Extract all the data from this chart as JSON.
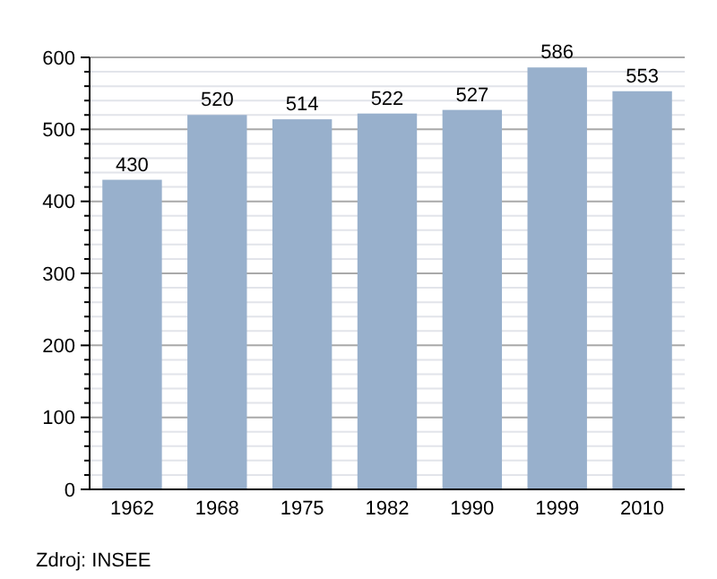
{
  "chart_data": {
    "type": "bar",
    "categories": [
      "1962",
      "1968",
      "1975",
      "1982",
      "1990",
      "1999",
      "2010"
    ],
    "values": [
      430,
      520,
      514,
      522,
      527,
      586,
      553
    ],
    "color": "#98b0cc",
    "data_labels": true,
    "ylim": [
      0,
      600
    ],
    "yticks": [
      0,
      {
        "value": 20,
        "label": null
      },
      {
        "value": 40,
        "label": null
      },
      {
        "value": 60,
        "label": null
      },
      {
        "value": 80,
        "label": null
      },
      100,
      {
        "value": 120,
        "label": null
      },
      {
        "value": 140,
        "label": null
      },
      {
        "value": 160,
        "label": null
      },
      {
        "value": 180,
        "label": null
      },
      200,
      {
        "value": 220,
        "label": null
      },
      {
        "value": 240,
        "label": null
      },
      {
        "value": 260,
        "label": null
      },
      {
        "value": 280,
        "label": null
      },
      300,
      {
        "value": 320,
        "label": null
      },
      {
        "value": 340,
        "label": null
      },
      {
        "value": 360,
        "label": null
      },
      {
        "value": 380,
        "label": null
      },
      400,
      {
        "value": 420,
        "label": null
      },
      {
        "value": 440,
        "label": null
      },
      {
        "value": 460,
        "label": null
      },
      {
        "value": 480,
        "label": null
      },
      500,
      {
        "value": 520,
        "label": null
      },
      {
        "value": 540,
        "label": null
      },
      {
        "value": 560,
        "label": null
      },
      {
        "value": 580,
        "label": null
      },
      600
    ],
    "grid": true,
    "annotations": [
      "Zdroj: INSEE"
    ]
  }
}
